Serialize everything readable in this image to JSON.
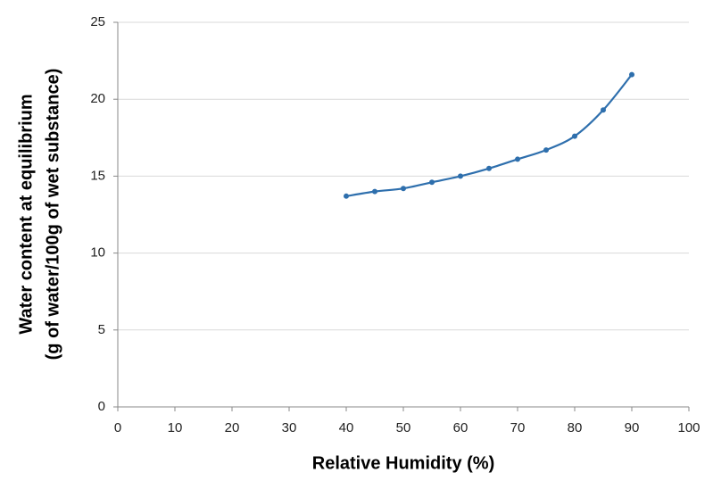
{
  "chart_data": {
    "type": "line",
    "xlabel": "Relative Humidity (%)",
    "ylabel": [
      "Water content at equilibrium",
      "(g of water/100g of wet substance)"
    ],
    "x": [
      40,
      45,
      50,
      55,
      60,
      65,
      70,
      75,
      80,
      85,
      90
    ],
    "series": [
      {
        "color": "#2e6fad",
        "values": [
          13.7,
          14.0,
          14.2,
          14.6,
          15.0,
          15.5,
          16.1,
          16.7,
          17.6,
          19.3,
          21.6
        ]
      }
    ],
    "xlim": [
      0,
      100
    ],
    "xticks": [
      0,
      10,
      20,
      30,
      40,
      50,
      60,
      70,
      80,
      90,
      100
    ],
    "ylim": [
      0,
      25
    ],
    "yticks": [
      0,
      5,
      10,
      15,
      20,
      25
    ],
    "grid": true,
    "smooth": true
  }
}
